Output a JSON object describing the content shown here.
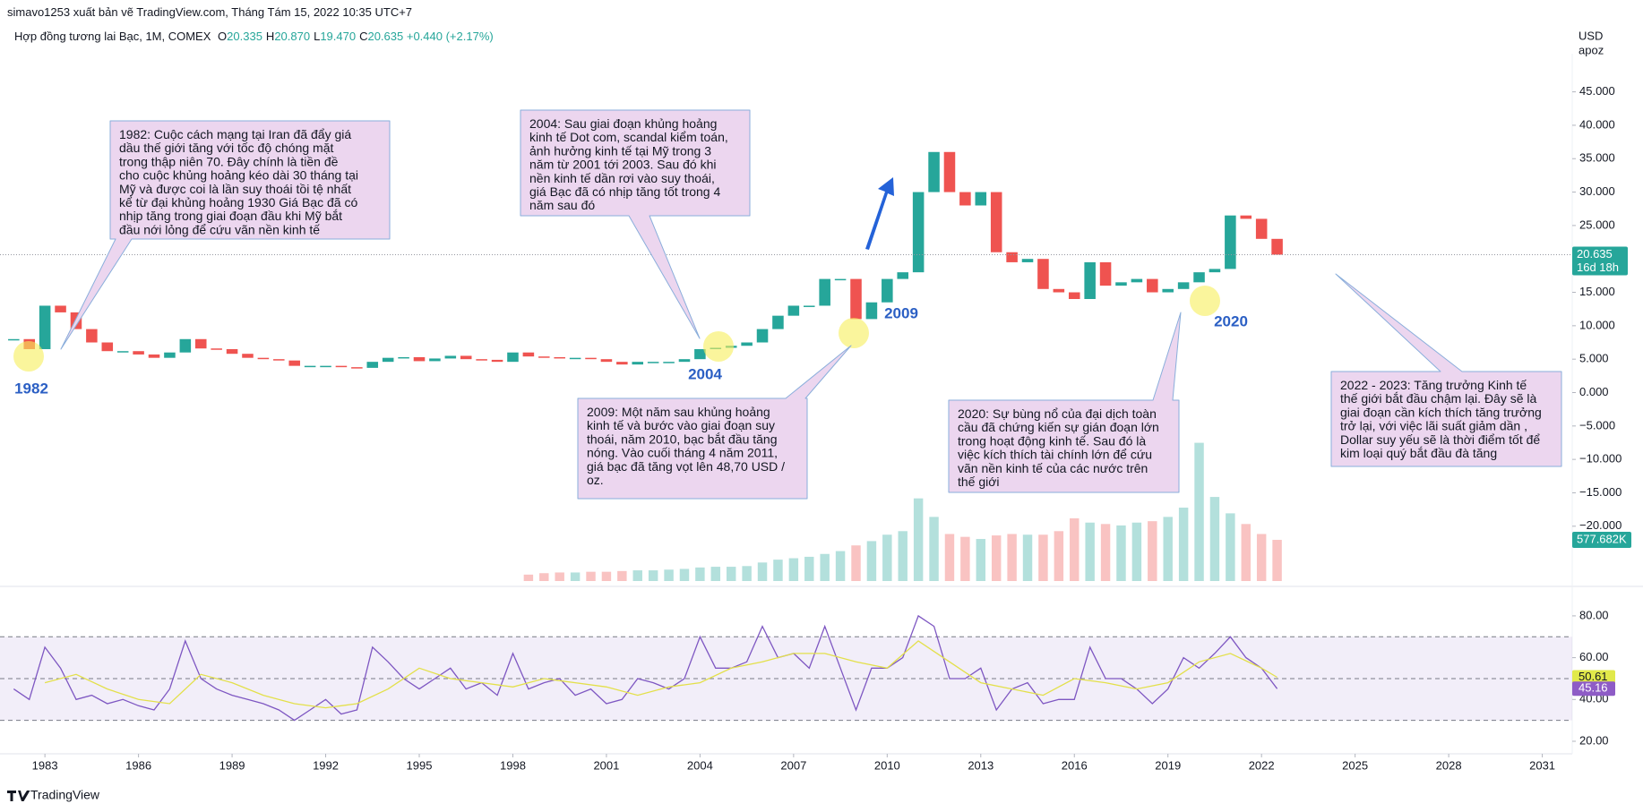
{
  "header": {
    "publisher": "simavo1253 xuất bản vẽ TradingView.com, Tháng Tám 15, 2022 10:35 UTC+7"
  },
  "legend": {
    "symbol": "Hợp đồng tương lai Bạc, 1M, COMEX",
    "items": [
      [
        "O",
        "20.335"
      ],
      [
        "H",
        "20.870"
      ],
      [
        "L",
        "19.470"
      ],
      [
        "C",
        "20.635"
      ]
    ],
    "change": "+0.440 (+2.17%)"
  },
  "axis_header": [
    "USD",
    "apoz"
  ],
  "chart_data": [
    {
      "type": "candlestick",
      "x": [
        1982,
        1982.5,
        1983,
        1983.5,
        1984,
        1984.5,
        1985,
        1985.5,
        1986,
        1986.5,
        1987,
        1987.5,
        1988,
        1988.5,
        1989,
        1989.5,
        1990,
        1990.5,
        1991,
        1991.5,
        1992,
        1992.5,
        1993,
        1993.5,
        1994,
        1994.5,
        1995,
        1995.5,
        1996,
        1996.5,
        1997,
        1997.5,
        1998,
        1998.5,
        1999,
        1999.5,
        2000,
        2000.5,
        2001,
        2001.5,
        2002,
        2002.5,
        2003,
        2003.5,
        2004,
        2004.5,
        2005,
        2005.5,
        2006,
        2006.5,
        2007,
        2007.5,
        2008,
        2008.5,
        2009,
        2009.5,
        2010,
        2010.5,
        2011,
        2011.5,
        2012,
        2012.5,
        2013,
        2013.5,
        2014,
        2014.5,
        2015,
        2015.5,
        2016,
        2016.5,
        2017,
        2017.5,
        2018,
        2018.5,
        2019,
        2019.5,
        2020,
        2020.5,
        2021,
        2021.5,
        2022,
        2022.5
      ],
      "values": [
        8,
        6.5,
        13,
        12,
        9.5,
        7.5,
        6.2,
        6.2,
        5.7,
        5.2,
        6,
        8,
        6.6,
        6.5,
        5.8,
        5.2,
        5,
        4.8,
        4,
        4,
        4,
        3.8,
        3.7,
        4.6,
        5.2,
        5.3,
        4.7,
        5.1,
        5.5,
        5,
        4.9,
        4.6,
        6,
        5.4,
        5.3,
        5.2,
        5.2,
        5,
        4.6,
        4.2,
        4.6,
        4.6,
        4.6,
        5,
        6.5,
        6.7,
        7,
        7.5,
        9.5,
        11.5,
        13,
        13,
        17,
        17,
        11,
        13.5,
        17,
        18,
        30,
        36,
        30,
        28,
        30,
        21,
        19.5,
        20,
        15.5,
        15,
        14,
        19.5,
        16,
        16.5,
        17,
        15,
        15.5,
        16.5,
        18,
        18.5,
        26.5,
        26,
        23,
        20.635
      ],
      "colors": {
        "up": "#26a69a",
        "down": "#ef5350"
      },
      "xlim": [
        1981.56,
        2031.96
      ],
      "ylim": [
        -28.2,
        50.17
      ],
      "yticks": [
        {
          "value": -20,
          "label": "−20.000"
        },
        {
          "value": -15,
          "label": "−15.000"
        },
        {
          "value": -10,
          "label": "−10.000"
        },
        {
          "value": -5,
          "label": "−5.000"
        },
        {
          "value": 0,
          "label": "0.000"
        },
        {
          "value": 5,
          "label": "5.000"
        },
        {
          "value": 10,
          "label": "10.000"
        },
        {
          "value": 15,
          "label": "15.000"
        },
        {
          "value": 20,
          "label": "20.000"
        },
        {
          "value": 25,
          "label": "25.000"
        },
        {
          "value": 30,
          "label": "30.000"
        },
        {
          "value": 35,
          "label": "35.000"
        },
        {
          "value": 40,
          "label": "40.000"
        },
        {
          "value": 45,
          "label": "45.000"
        }
      ],
      "countdown": "16d 18h",
      "volume": {
        "values": [
          null,
          null,
          null,
          null,
          null,
          null,
          null,
          null,
          null,
          null,
          null,
          null,
          null,
          null,
          null,
          null,
          null,
          null,
          null,
          null,
          null,
          null,
          null,
          null,
          null,
          null,
          null,
          null,
          null,
          null,
          null,
          null,
          null,
          90,
          110,
          120,
          120,
          130,
          130,
          140,
          150,
          150,
          160,
          170,
          190,
          200,
          200,
          210,
          260,
          300,
          320,
          340,
          380,
          420,
          500,
          560,
          650,
          700,
          1160,
          900,
          660,
          620,
          590,
          640,
          660,
          650,
          650,
          700,
          880,
          820,
          800,
          780,
          820,
          840,
          900,
          1030,
          1940,
          1180,
          950,
          800,
          660,
          577.682
        ],
        "ylim": [
          0,
          7350
        ],
        "last_label": "577.682K"
      }
    },
    {
      "type": "line",
      "x": [
        1982,
        1982.5,
        1983,
        1983.5,
        1984,
        1984.5,
        1985,
        1985.5,
        1986,
        1986.5,
        1987,
        1987.5,
        1988,
        1988.5,
        1989,
        1989.5,
        1990,
        1990.5,
        1991,
        1991.5,
        1992,
        1992.5,
        1993,
        1993.5,
        1994,
        1994.5,
        1995,
        1995.5,
        1996,
        1996.5,
        1997,
        1997.5,
        1998,
        1998.5,
        1999,
        1999.5,
        2000,
        2000.5,
        2001,
        2001.5,
        2002,
        2002.5,
        2003,
        2003.5,
        2004,
        2004.5,
        2005,
        2005.5,
        2006,
        2006.5,
        2007,
        2007.5,
        2008,
        2008.5,
        2009,
        2009.5,
        2010,
        2010.5,
        2011,
        2011.5,
        2012,
        2012.5,
        2013,
        2013.5,
        2014,
        2014.5,
        2015,
        2015.5,
        2016,
        2016.5,
        2017,
        2017.5,
        2018,
        2018.5,
        2019,
        2019.5,
        2020,
        2020.5,
        2021,
        2021.5,
        2022,
        2022.5
      ],
      "series": [
        {
          "color": "#7e57c2",
          "values": [
            45,
            40,
            65,
            55,
            40,
            42,
            38,
            40,
            37,
            35,
            45,
            68,
            50,
            45,
            42,
            40,
            38,
            35,
            30,
            35,
            40,
            33,
            35,
            65,
            58,
            50,
            45,
            50,
            55,
            45,
            48,
            42,
            62,
            45,
            48,
            50,
            42,
            45,
            38,
            40,
            50,
            48,
            45,
            50,
            70,
            55,
            55,
            58,
            75,
            60,
            62,
            55,
            75,
            55,
            35,
            55,
            55,
            60,
            80,
            75,
            50,
            50,
            55,
            35,
            45,
            48,
            38,
            40,
            40,
            65,
            50,
            50,
            45,
            38,
            45,
            60,
            55,
            62,
            70,
            60,
            55,
            45.16
          ]
        },
        {
          "color": "#e3e04a",
          "x": [
            1983,
            1984,
            1985,
            1986,
            1987,
            1988,
            1989,
            1990,
            1991,
            1992,
            1993,
            1994,
            1995,
            1996,
            1997,
            1998,
            1999,
            2000,
            2001,
            2002,
            2003,
            2004,
            2005,
            2006,
            2007,
            2008,
            2009,
            2010,
            2011,
            2012,
            2013,
            2014,
            2015,
            2016,
            2017,
            2018,
            2019,
            2020,
            2021,
            2022,
            2022.5
          ],
          "values": [
            48,
            52,
            45,
            40,
            38,
            52,
            48,
            42,
            38,
            36,
            38,
            45,
            55,
            50,
            48,
            46,
            50,
            48,
            46,
            42,
            46,
            48,
            55,
            58,
            62,
            62,
            58,
            55,
            68,
            58,
            48,
            45,
            42,
            50,
            48,
            45,
            48,
            58,
            62,
            55,
            50.61
          ]
        }
      ],
      "xlim": [
        1981.56,
        2031.96
      ],
      "xticks": [
        1983,
        1986,
        1989,
        1992,
        1995,
        1998,
        2001,
        2004,
        2007,
        2010,
        2013,
        2016,
        2019,
        2022,
        2025,
        2028,
        2031
      ],
      "ylim": [
        14,
        94.1
      ],
      "yticks": [
        {
          "value": 20,
          "label": "20.00"
        },
        {
          "value": 40,
          "label": "40.00"
        },
        {
          "value": 60,
          "label": "60.00"
        },
        {
          "value": 80,
          "label": "80.00"
        }
      ],
      "bands": [
        30,
        50,
        70
      ]
    }
  ],
  "annotations": [
    {
      "lines": [
        "1982: Cuộc cách mạng tại Iran đã đẩy giá",
        "dầu thế giới tăng với tốc độ chóng mặt",
        "trong thập niên 70. Đây chính là tiền đề",
        "cho cuộc khủng hoảng kéo dài 30 tháng tại",
        "Mỹ và được coi là lần suy thoái tồi tệ nhất",
        "kể từ đại khủng hoảng 1930 Giá Bạc đã có",
        "nhịp tăng trong giai đoạn đầu khi Mỹ bắt",
        "đầu nới lỏng để cứu vãn nền kinh tế"
      ]
    },
    {
      "lines": [
        "2004: Sau giai đoạn khủng hoảng",
        "kinh tế Dot com, scandal kiểm toán,",
        "ảnh hưởng kinh tế tại Mỹ trong 3",
        "năm từ 2001 tới 2003. Sau đó khi",
        "nền kinh tế dần rơi vào suy thoái,",
        "giá Bạc đã có nhịp tăng tốt trong 4",
        "năm sau đó"
      ]
    },
    {
      "lines": [
        "2009: Một năm sau khủng hoảng",
        "kinh tế và bước vào giai đoạn suy",
        "thoái, năm 2010, bạc bắt đầu tăng",
        "nóng. Vào cuối tháng 4 năm 2011,",
        "giá bạc đã tăng vọt lên 48,70 USD /",
        "oz."
      ]
    },
    {
      "lines": [
        "2020: Sự bùng nổ của đại dịch toàn",
        "cầu đã chứng kiến sự gián đoạn lớn",
        "trong hoạt động kinh tế. Sau đó là",
        "việc kích thích tài chính lớn để cứu",
        "vãn nền kinh tế của các nước trên",
        "thế giới"
      ]
    },
    {
      "lines": [
        "2022 - 2023: Tăng trưởng Kinh tế",
        "thế giới bắt đầu chậm lại. Đây sẽ là",
        "giai đoạn cần kích thích tăng trưởng",
        "trở lại, với việc lãi suất giảm dần ,",
        "Dollar suy yếu sẽ là thời điểm tốt để",
        "kim loại quý bắt đầu đà tăng"
      ]
    }
  ],
  "markers": [
    "1982",
    "2004",
    "2009",
    "2020"
  ],
  "footer": "TradingView"
}
